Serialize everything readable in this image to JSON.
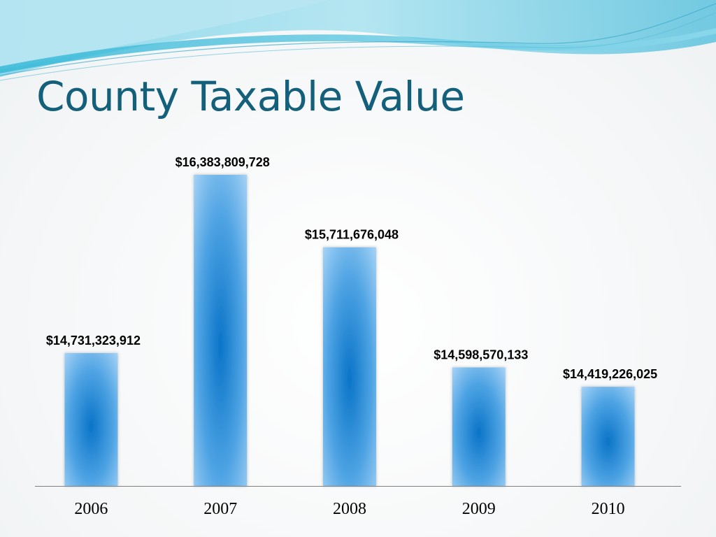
{
  "slide": {
    "title": "County Taxable Value"
  },
  "chart_data": {
    "type": "bar",
    "title": "County Taxable Value",
    "categories": [
      "2006",
      "2007",
      "2008",
      "2009",
      "2010"
    ],
    "values": [
      14731323912,
      16383809728,
      15711676048,
      14598570133,
      14419226025
    ],
    "data_labels": [
      "$14,731,323,912",
      "$16,383,809,728",
      "$15,711,676,048",
      "$14,598,570,133",
      "$14,419,226,025"
    ],
    "xlabel": "",
    "ylabel": "",
    "grid": false,
    "legend": "none",
    "colors": {
      "bar_center": "#0a74c8",
      "bar_edge": "#a8d4f7",
      "axis": "#7f7f7f",
      "title": "#14607a"
    }
  }
}
